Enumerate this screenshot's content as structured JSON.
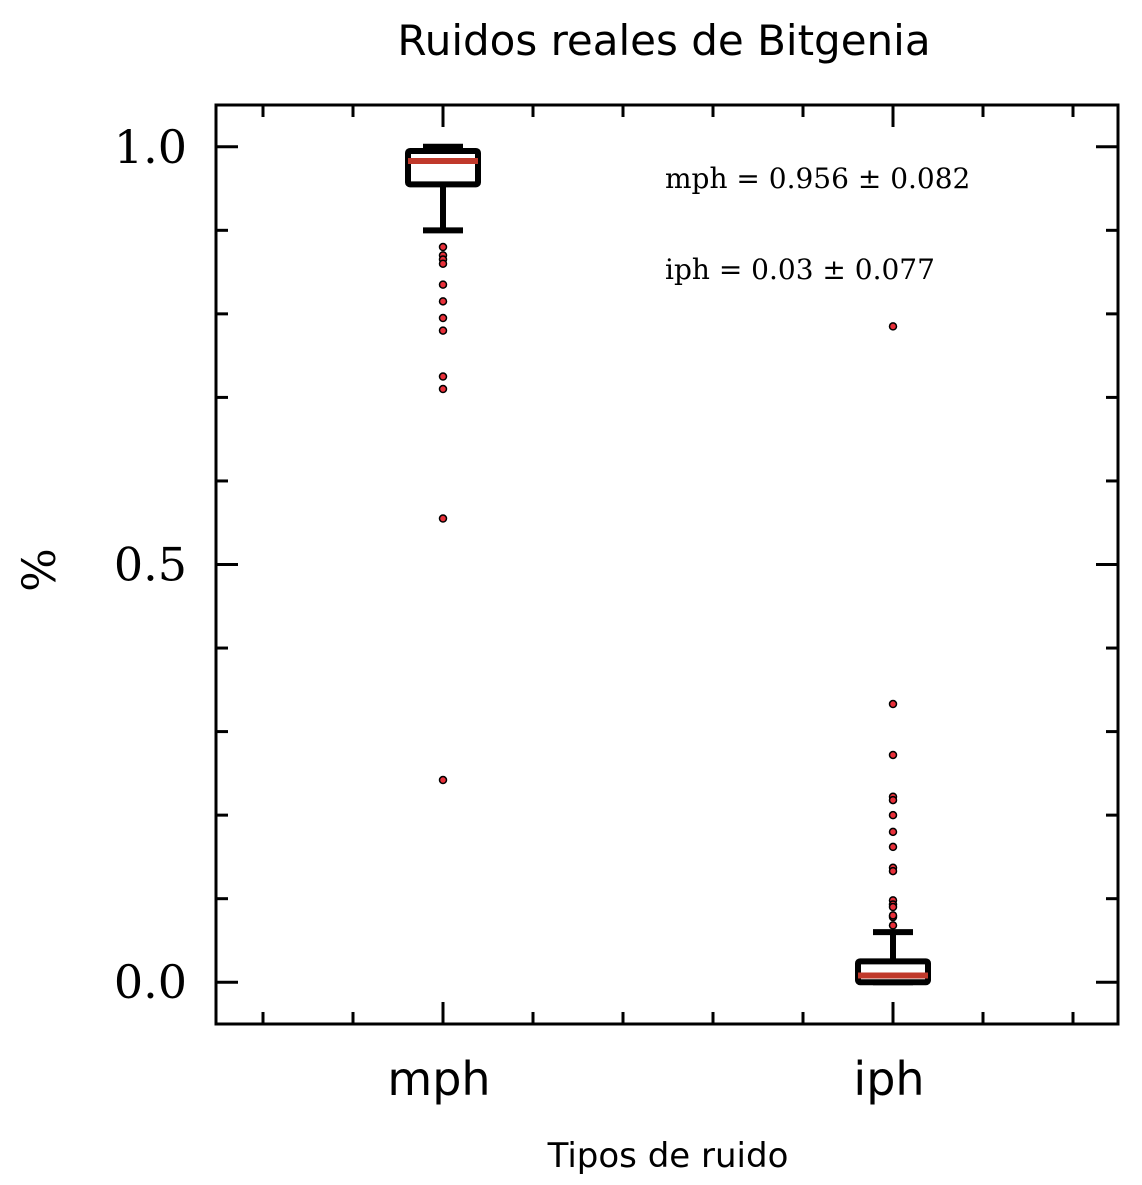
{
  "chart_data": {
    "type": "box",
    "title": "Ruidos reales de Bitgenia",
    "xlabel": "Tipos de ruido",
    "ylabel": "%",
    "ylim": [
      -0.05,
      1.05
    ],
    "yticks": [
      "0.0",
      "0.5",
      "1.0"
    ],
    "categories": [
      "mph",
      "iph"
    ],
    "boxes": [
      {
        "name": "mph",
        "whisker_low": 0.9,
        "q1": 0.955,
        "median": 0.983,
        "q3": 0.995,
        "whisker_high": 1.0,
        "outliers": [
          0.88,
          0.87,
          0.865,
          0.86,
          0.835,
          0.815,
          0.795,
          0.78,
          0.725,
          0.71,
          0.555,
          0.242
        ]
      },
      {
        "name": "iph",
        "whisker_low": 0.0,
        "q1": 0.0,
        "median": 0.008,
        "q3": 0.025,
        "whisker_high": 0.06,
        "outliers": [
          0.078,
          0.785,
          0.333,
          0.272,
          0.222,
          0.218,
          0.2,
          0.18,
          0.162,
          0.137,
          0.133,
          0.098,
          0.093,
          0.09,
          0.08,
          0.068
        ]
      }
    ],
    "annotations": [
      "mph = 0.956 ± 0.082",
      "iph = 0.03 ± 0.077"
    ],
    "colors": {
      "box": "#000000",
      "median": "#c0392b",
      "outlier_fill": "#e8303a"
    }
  }
}
